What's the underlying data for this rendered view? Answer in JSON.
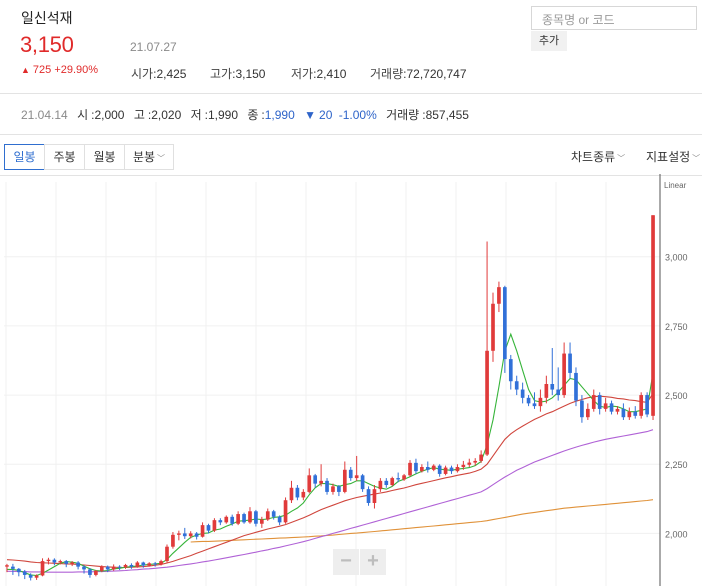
{
  "stock": {
    "name": "일신석재",
    "price": "3,150",
    "date": "21.07.27",
    "change_arrow": "▲",
    "change": "725",
    "change_pct": "+29.90%",
    "stats": [
      {
        "label": "시가",
        "value": "2,425"
      },
      {
        "label": "고가",
        "value": "3,150"
      },
      {
        "label": "저가",
        "value": "2,410"
      },
      {
        "label": "거래량",
        "value": "72,720,747"
      }
    ]
  },
  "search": {
    "placeholder": "종목명 or 코드",
    "add_label": "추가"
  },
  "day_info": {
    "date": "21.04.14",
    "open_label": "시",
    "open": "2,000",
    "high_label": "고",
    "high": "2,020",
    "low_label": "저",
    "low": "1,990",
    "close_label": "종",
    "close": "1,990",
    "change_arrow": "▼",
    "change": "20",
    "change_pct": "-1.00%",
    "volume_label": "거래량",
    "volume": "857,455"
  },
  "toolbar": {
    "tabs": [
      "일봉",
      "주봉",
      "월봉",
      "분봉"
    ],
    "active_tab": "일봉",
    "chart_type_label": "차트종류",
    "indicator_label": "지표설정"
  },
  "zoom": {
    "minus": "−",
    "plus": "+"
  },
  "colors": {
    "up": "#e03a3a",
    "down": "#3170d8",
    "ma5": "#36b43a",
    "ma20": "#d0463d",
    "ma60": "#b062d6",
    "ma120": "#e0923a"
  },
  "chart_data": {
    "type": "candlestick",
    "scale_label": "Linear",
    "y_ticks": [
      2000,
      2250,
      2500,
      2750,
      3000
    ],
    "ylim": [
      1810,
      3270
    ],
    "candles": [
      [
        1880,
        1885,
        1860,
        1890
      ],
      [
        1880,
        1872,
        1850,
        1890
      ],
      [
        1872,
        1860,
        1845,
        1875
      ],
      [
        1862,
        1850,
        1835,
        1868
      ],
      [
        1850,
        1840,
        1830,
        1856
      ],
      [
        1840,
        1848,
        1832,
        1852
      ],
      [
        1848,
        1900,
        1845,
        1910
      ],
      [
        1900,
        1905,
        1888,
        1912
      ],
      [
        1905,
        1895,
        1885,
        1910
      ],
      [
        1895,
        1900,
        1888,
        1905
      ],
      [
        1900,
        1890,
        1878,
        1904
      ],
      [
        1890,
        1895,
        1882,
        1900
      ],
      [
        1895,
        1880,
        1870,
        1900
      ],
      [
        1880,
        1870,
        1855,
        1885
      ],
      [
        1870,
        1850,
        1840,
        1875
      ],
      [
        1850,
        1865,
        1845,
        1868
      ],
      [
        1865,
        1880,
        1860,
        1885
      ],
      [
        1880,
        1870,
        1860,
        1884
      ],
      [
        1870,
        1880,
        1865,
        1888
      ],
      [
        1880,
        1878,
        1868,
        1885
      ],
      [
        1878,
        1886,
        1872,
        1890
      ],
      [
        1886,
        1880,
        1872,
        1892
      ],
      [
        1880,
        1895,
        1876,
        1900
      ],
      [
        1895,
        1884,
        1876,
        1898
      ],
      [
        1884,
        1892,
        1880,
        1896
      ],
      [
        1892,
        1888,
        1880,
        1897
      ],
      [
        1888,
        1900,
        1884,
        1905
      ],
      [
        1900,
        1952,
        1895,
        1960
      ],
      [
        1952,
        1995,
        1945,
        2005
      ],
      [
        1995,
        2000,
        1975,
        2010
      ],
      [
        2000,
        1990,
        1980,
        2020
      ],
      [
        1990,
        2000,
        1982,
        2008
      ],
      [
        2000,
        1988,
        1978,
        2005
      ],
      [
        1988,
        2030,
        1985,
        2040
      ],
      [
        2030,
        2010,
        2000,
        2035
      ],
      [
        2010,
        2048,
        2005,
        2055
      ],
      [
        2048,
        2040,
        2030,
        2055
      ],
      [
        2040,
        2060,
        2035,
        2065
      ],
      [
        2060,
        2035,
        2028,
        2068
      ],
      [
        2035,
        2070,
        2030,
        2080
      ],
      [
        2070,
        2040,
        2035,
        2075
      ],
      [
        2040,
        2080,
        2035,
        2095
      ],
      [
        2080,
        2035,
        2025,
        2085
      ],
      [
        2035,
        2050,
        2020,
        2060
      ],
      [
        2050,
        2080,
        2045,
        2090
      ],
      [
        2080,
        2060,
        2050,
        2085
      ],
      [
        2060,
        2040,
        2030,
        2065
      ],
      [
        2040,
        2120,
        2035,
        2130
      ],
      [
        2120,
        2165,
        2110,
        2190
      ],
      [
        2165,
        2130,
        2120,
        2175
      ],
      [
        2130,
        2150,
        2120,
        2160
      ],
      [
        2150,
        2210,
        2145,
        2235
      ],
      [
        2210,
        2180,
        2165,
        2215
      ],
      [
        2180,
        2190,
        2170,
        2250
      ],
      [
        2190,
        2150,
        2140,
        2200
      ],
      [
        2150,
        2170,
        2140,
        2180
      ],
      [
        2170,
        2150,
        2135,
        2175
      ],
      [
        2150,
        2230,
        2145,
        2260
      ],
      [
        2230,
        2200,
        2190,
        2240
      ],
      [
        2200,
        2210,
        2190,
        2280
      ],
      [
        2210,
        2160,
        2150,
        2215
      ],
      [
        2160,
        2110,
        2100,
        2170
      ],
      [
        2110,
        2160,
        2090,
        2175
      ],
      [
        2160,
        2190,
        2150,
        2200
      ],
      [
        2190,
        2175,
        2165,
        2200
      ],
      [
        2175,
        2200,
        2170,
        2205
      ],
      [
        2200,
        2195,
        2185,
        2220
      ],
      [
        2195,
        2210,
        2190,
        2215
      ],
      [
        2210,
        2255,
        2205,
        2265
      ],
      [
        2255,
        2225,
        2215,
        2270
      ],
      [
        2225,
        2240,
        2220,
        2250
      ],
      [
        2240,
        2230,
        2220,
        2260
      ],
      [
        2230,
        2245,
        2225,
        2250
      ],
      [
        2245,
        2215,
        2205,
        2250
      ],
      [
        2215,
        2238,
        2210,
        2245
      ],
      [
        2238,
        2225,
        2215,
        2245
      ],
      [
        2225,
        2240,
        2220,
        2250
      ],
      [
        2240,
        2248,
        2230,
        2262
      ],
      [
        2248,
        2256,
        2240,
        2270
      ],
      [
        2256,
        2262,
        2245,
        2272
      ],
      [
        2262,
        2285,
        2255,
        2300
      ],
      [
        2285,
        2660,
        2280,
        3055
      ],
      [
        2660,
        2830,
        2620,
        2870
      ],
      [
        2830,
        2890,
        2800,
        2910
      ],
      [
        2890,
        2630,
        2580,
        2895
      ],
      [
        2630,
        2550,
        2520,
        2645
      ],
      [
        2550,
        2520,
        2500,
        2570
      ],
      [
        2520,
        2490,
        2470,
        2545
      ],
      [
        2490,
        2470,
        2460,
        2500
      ],
      [
        2470,
        2460,
        2450,
        2510
      ],
      [
        2460,
        2490,
        2440,
        2520
      ],
      [
        2490,
        2540,
        2470,
        2570
      ],
      [
        2540,
        2520,
        2500,
        2670
      ],
      [
        2520,
        2500,
        2480,
        2600
      ],
      [
        2500,
        2650,
        2490,
        2690
      ],
      [
        2650,
        2580,
        2560,
        2690
      ],
      [
        2580,
        2480,
        2460,
        2600
      ],
      [
        2480,
        2420,
        2400,
        2500
      ],
      [
        2420,
        2450,
        2410,
        2470
      ],
      [
        2450,
        2500,
        2440,
        2520
      ],
      [
        2500,
        2450,
        2430,
        2510
      ],
      [
        2450,
        2470,
        2440,
        2490
      ],
      [
        2470,
        2440,
        2430,
        2480
      ],
      [
        2440,
        2450,
        2430,
        2460
      ],
      [
        2450,
        2420,
        2410,
        2470
      ],
      [
        2420,
        2440,
        2410,
        2455
      ],
      [
        2440,
        2425,
        2415,
        2460
      ],
      [
        2425,
        2500,
        2415,
        2510
      ],
      [
        2500,
        2430,
        2420,
        2510
      ],
      [
        2425,
        3150,
        2410,
        3150
      ]
    ],
    "ma5": [
      1870,
      1870,
      1866,
      1858,
      1850,
      1848,
      1856,
      1868,
      1880,
      1892,
      1898,
      1896,
      1892,
      1882,
      1872,
      1866,
      1864,
      1866,
      1872,
      1874,
      1878,
      1880,
      1882,
      1886,
      1888,
      1890,
      1892,
      1906,
      1928,
      1948,
      1968,
      1986,
      1994,
      2000,
      2002,
      2012,
      2016,
      2026,
      2034,
      2044,
      2046,
      2048,
      2052,
      2050,
      2052,
      2058,
      2060,
      2066,
      2080,
      2092,
      2110,
      2140,
      2165,
      2180,
      2180,
      2176,
      2170,
      2176,
      2180,
      2190,
      2190,
      2180,
      2170,
      2164,
      2160,
      2170,
      2188,
      2196,
      2205,
      2215,
      2225,
      2232,
      2238,
      2232,
      2230,
      2228,
      2232,
      2235,
      2238,
      2245,
      2260,
      2320,
      2410,
      2530,
      2660,
      2720,
      2660,
      2590,
      2520,
      2480,
      2475,
      2478,
      2490,
      2510,
      2535,
      2560,
      2555,
      2530,
      2505,
      2480,
      2460,
      2455,
      2460,
      2458,
      2450,
      2440,
      2440,
      2445,
      2450,
      2580
    ],
    "ma20": [
      1905,
      1904,
      1902,
      1900,
      1897,
      1895,
      1894,
      1893,
      1892,
      1891,
      1890,
      1889,
      1888,
      1886,
      1884,
      1882,
      1880,
      1879,
      1878,
      1877,
      1877,
      1878,
      1879,
      1880,
      1882,
      1885,
      1888,
      1893,
      1899,
      1906,
      1913,
      1920,
      1928,
      1936,
      1944,
      1952,
      1960,
      1968,
      1976,
      1984,
      1992,
      1998,
      2004,
      2010,
      2016,
      2021,
      2026,
      2032,
      2040,
      2048,
      2056,
      2066,
      2076,
      2086,
      2094,
      2102,
      2110,
      2118,
      2124,
      2130,
      2134,
      2138,
      2142,
      2146,
      2150,
      2155,
      2160,
      2164,
      2170,
      2176,
      2181,
      2186,
      2191,
      2196,
      2201,
      2205,
      2210,
      2214,
      2218,
      2224,
      2232,
      2250,
      2280,
      2310,
      2340,
      2360,
      2375,
      2388,
      2400,
      2412,
      2422,
      2432,
      2440,
      2450,
      2460,
      2470,
      2478,
      2484,
      2490,
      2494,
      2496,
      2494,
      2492,
      2488,
      2486,
      2482,
      2480,
      2476,
      2474,
      2505
    ],
    "ma60": [
      1863,
      1863,
      1862,
      1862,
      1861,
      1861,
      1861,
      1860,
      1860,
      1860,
      1860,
      1860,
      1861,
      1861,
      1861,
      1862,
      1862,
      1863,
      1864,
      1865,
      1866,
      1868,
      1869,
      1871,
      1872,
      1874,
      1876,
      1878,
      1881,
      1884,
      1887,
      1890,
      1893,
      1897,
      1900,
      1904,
      1908,
      1912,
      1916,
      1920,
      1924,
      1928,
      1932,
      1937,
      1941,
      1946,
      1950,
      1955,
      1960,
      1965,
      1970,
      1976,
      1982,
      1988,
      1994,
      2000,
      2006,
      2012,
      2018,
      2024,
      2030,
      2036,
      2042,
      2048,
      2054,
      2060,
      2066,
      2072,
      2078,
      2084,
      2090,
      2096,
      2102,
      2108,
      2114,
      2120,
      2126,
      2132,
      2138,
      2144,
      2150,
      2162,
      2176,
      2190,
      2204,
      2216,
      2228,
      2238,
      2248,
      2258,
      2266,
      2274,
      2282,
      2290,
      2298,
      2305,
      2312,
      2318,
      2324,
      2330,
      2335,
      2340,
      2344,
      2348,
      2352,
      2356,
      2360,
      2364,
      2368,
      2375
    ],
    "ma120_start_index": 31,
    "ma120": [
      1969,
      1970,
      1971,
      1971,
      1972,
      1973,
      1974,
      1975,
      1976,
      1977,
      1978,
      1979,
      1980,
      1981,
      1982,
      1983,
      1984,
      1985,
      1986,
      1987,
      1988,
      1990,
      1991,
      1993,
      1994,
      1996,
      1998,
      2000,
      2001,
      2003,
      2005,
      2007,
      2009,
      2011,
      2013,
      2015,
      2017,
      2019,
      2021,
      2023,
      2025,
      2027,
      2029,
      2031,
      2033,
      2035,
      2037,
      2039,
      2041,
      2043,
      2046,
      2050,
      2054,
      2058,
      2062,
      2066,
      2070,
      2073,
      2076,
      2079,
      2082,
      2085,
      2088,
      2091,
      2093,
      2095,
      2097,
      2099,
      2101,
      2103,
      2105,
      2107,
      2109,
      2111,
      2113,
      2115,
      2117,
      2119,
      2122
    ]
  }
}
